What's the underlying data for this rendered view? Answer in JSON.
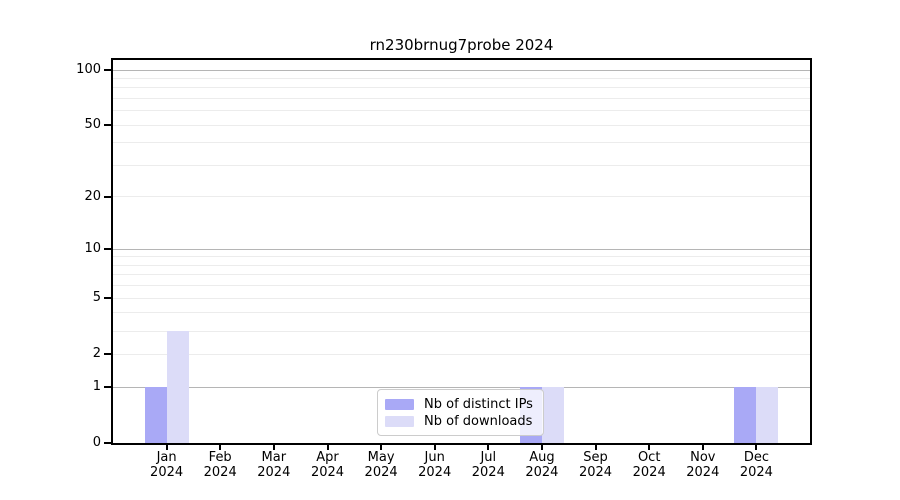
{
  "chart_data": {
    "type": "bar",
    "title": "rn230brnug7probe 2024",
    "categories": [
      "Jan",
      "Feb",
      "Mar",
      "Apr",
      "May",
      "Jun",
      "Jul",
      "Aug",
      "Sep",
      "Oct",
      "Nov",
      "Dec"
    ],
    "category_year": "2024",
    "series": [
      {
        "name": "Nb of distinct IPs",
        "color": "#a9a9f6",
        "values": [
          1,
          0,
          0,
          0,
          0,
          0,
          0,
          1,
          0,
          0,
          0,
          1
        ]
      },
      {
        "name": "Nb of downloads",
        "color": "#dcdcf8",
        "values": [
          3,
          0,
          0,
          0,
          0,
          0,
          0,
          1,
          0,
          0,
          0,
          1
        ]
      }
    ],
    "xlabel": "",
    "ylabel": "",
    "yscale": "log1p",
    "ylim": [
      0,
      118
    ],
    "ytick_labels": [
      100,
      50,
      20,
      10,
      5,
      2,
      1,
      0
    ],
    "gridlines": {
      "major": [
        1,
        10,
        100
      ],
      "minor": [
        2,
        3,
        4,
        5,
        6,
        7,
        8,
        9,
        20,
        30,
        40,
        50,
        60,
        70,
        80,
        90
      ]
    },
    "grid_major_color": "#b5b5b5",
    "grid_minor_color": "#ececec",
    "axis_color": "#000000",
    "legend_position": "lower center",
    "grid": true
  }
}
